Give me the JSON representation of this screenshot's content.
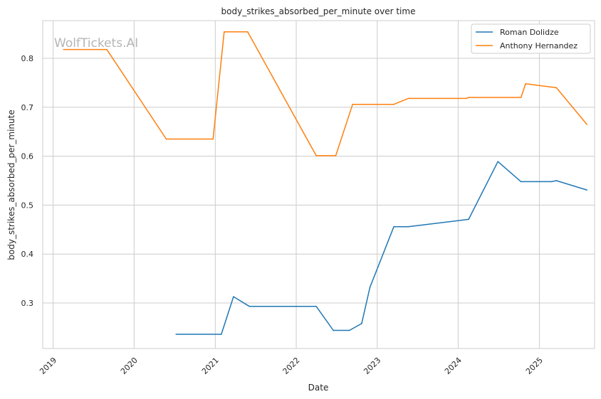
{
  "watermark": "WolfTickets.AI",
  "chart_data": {
    "type": "line",
    "title": "body_strikes_absorbed_per_minute over time",
    "xlabel": "Date",
    "ylabel": "body_strikes_absorbed_per_minute",
    "x_ticks": [
      "2019",
      "2020",
      "2021",
      "2022",
      "2023",
      "2024",
      "2025"
    ],
    "y_ticks": [
      "0.3",
      "0.4",
      "0.5",
      "0.6",
      "0.7",
      "0.8"
    ],
    "xlim": [
      "2018-11-15",
      "2025-09-07"
    ],
    "ylim": [
      0.207,
      0.877
    ],
    "grid": true,
    "legend_position": "top-right",
    "series": [
      {
        "name": "Roman Dolidze",
        "color": "#1f77b4",
        "points": [
          [
            "2020-07-08",
            0.236
          ],
          [
            "2021-01-28",
            0.236
          ],
          [
            "2021-03-24",
            0.313
          ],
          [
            "2021-06-04",
            0.293
          ],
          [
            "2022-04-01",
            0.293
          ],
          [
            "2022-06-17",
            0.244
          ],
          [
            "2022-08-29",
            0.244
          ],
          [
            "2022-10-23",
            0.258
          ],
          [
            "2022-11-29",
            0.332
          ],
          [
            "2023-03-17",
            0.456
          ],
          [
            "2023-05-21",
            0.456
          ],
          [
            "2024-02-17",
            0.471
          ],
          [
            "2024-06-28",
            0.589
          ],
          [
            "2024-10-10",
            0.548
          ],
          [
            "2025-02-25",
            0.548
          ],
          [
            "2025-03-19",
            0.55
          ],
          [
            "2025-08-03",
            0.531
          ]
        ]
      },
      {
        "name": "Anthony Hernandez",
        "color": "#ff7f0e",
        "points": [
          [
            "2019-02-17",
            0.818
          ],
          [
            "2019-08-31",
            0.818
          ],
          [
            "2020-05-25",
            0.635
          ],
          [
            "2020-12-22",
            0.635
          ],
          [
            "2021-02-10",
            0.854
          ],
          [
            "2021-05-27",
            0.854
          ],
          [
            "2022-04-01",
            0.601
          ],
          [
            "2022-06-28",
            0.601
          ],
          [
            "2022-09-12",
            0.706
          ],
          [
            "2023-03-17",
            0.706
          ],
          [
            "2023-05-21",
            0.718
          ],
          [
            "2024-02-06",
            0.718
          ],
          [
            "2024-02-17",
            0.72
          ],
          [
            "2024-10-10",
            0.72
          ],
          [
            "2024-10-31",
            0.748
          ],
          [
            "2025-03-19",
            0.74
          ],
          [
            "2025-08-03",
            0.665
          ]
        ]
      }
    ]
  }
}
